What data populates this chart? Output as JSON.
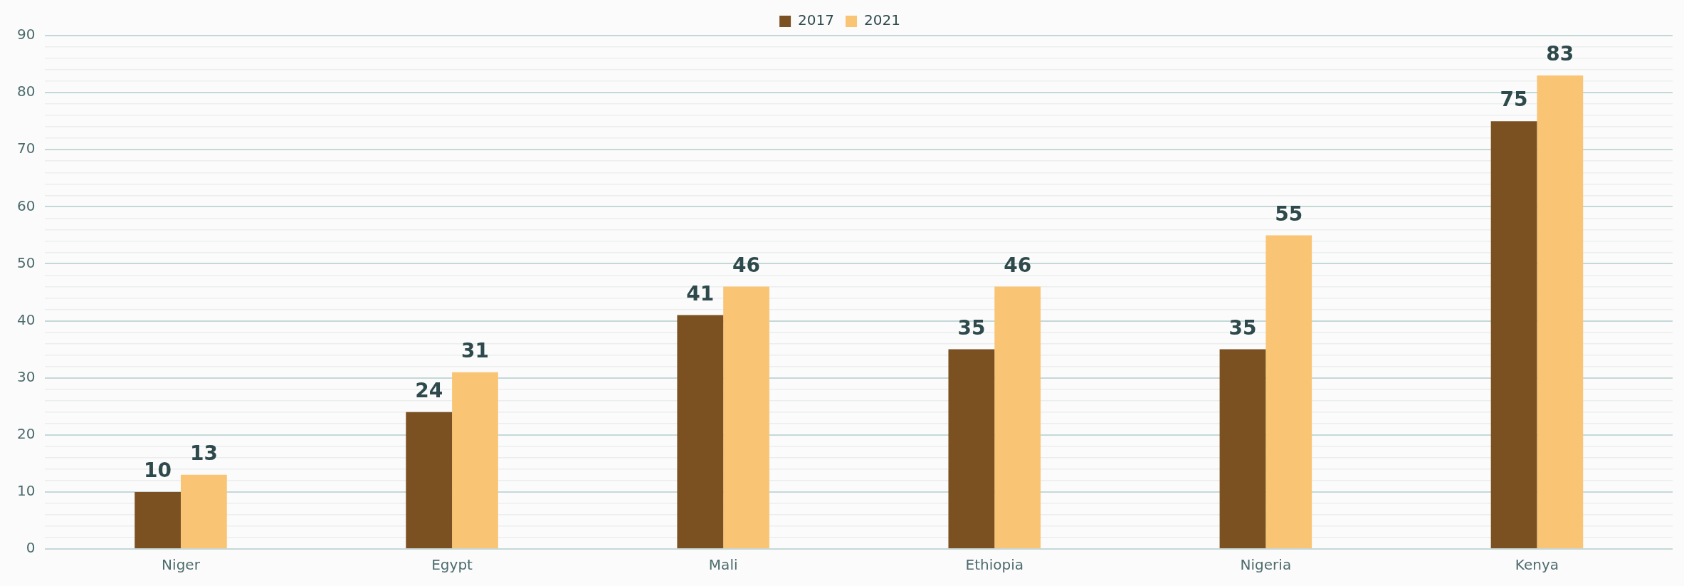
{
  "chart_data": {
    "type": "bar",
    "categories": [
      "Niger",
      "Egypt",
      "Mali",
      "Ethiopia",
      "Nigeria",
      "Kenya"
    ],
    "series": [
      {
        "name": "2017",
        "color": "#7b5121",
        "values": [
          10,
          24,
          41,
          35,
          35,
          75
        ]
      },
      {
        "name": "2021",
        "color": "#f9c575",
        "values": [
          13,
          31,
          46,
          46,
          55,
          83
        ]
      }
    ],
    "ylim": [
      0,
      90
    ],
    "yticks": [
      0,
      {
        "value": 2,
        "label": null
      },
      {
        "value": 4,
        "label": null
      },
      {
        "value": 6,
        "label": null
      },
      {
        "value": 8,
        "label": null
      },
      10,
      {
        "value": 12,
        "label": null
      },
      {
        "value": 14,
        "label": null
      },
      {
        "value": 16,
        "label": null
      },
      {
        "value": 18,
        "label": null
      },
      20,
      {
        "value": 22,
        "label": null
      },
      {
        "value": 24,
        "label": null
      },
      {
        "value": 26,
        "label": null
      },
      {
        "value": 28,
        "label": null
      },
      30,
      {
        "value": 32,
        "label": null
      },
      {
        "value": 34,
        "label": null
      },
      {
        "value": 36,
        "label": null
      },
      {
        "value": 38,
        "label": null
      },
      40,
      {
        "value": 42,
        "label": null
      },
      {
        "value": 44,
        "label": null
      },
      {
        "value": 46,
        "label": null
      },
      {
        "value": 48,
        "label": null
      },
      50,
      {
        "value": 52,
        "label": null
      },
      {
        "value": 54,
        "label": null
      },
      {
        "value": 56,
        "label": null
      },
      {
        "value": 58,
        "label": null
      },
      60,
      {
        "value": 62,
        "label": null
      },
      {
        "value": 64,
        "label": null
      },
      {
        "value": 66,
        "label": null
      },
      {
        "value": 68,
        "label": null
      },
      70,
      {
        "value": 72,
        "label": null
      },
      {
        "value": 74,
        "label": null
      },
      {
        "value": 76,
        "label": null
      },
      {
        "value": 78,
        "label": null
      },
      80,
      {
        "value": 82,
        "label": null
      },
      {
        "value": 84,
        "label": null
      },
      {
        "value": 86,
        "label": null
      },
      {
        "value": 88,
        "label": null
      },
      90
    ],
    "grid": "y",
    "legend": "top",
    "data_labels": true
  }
}
